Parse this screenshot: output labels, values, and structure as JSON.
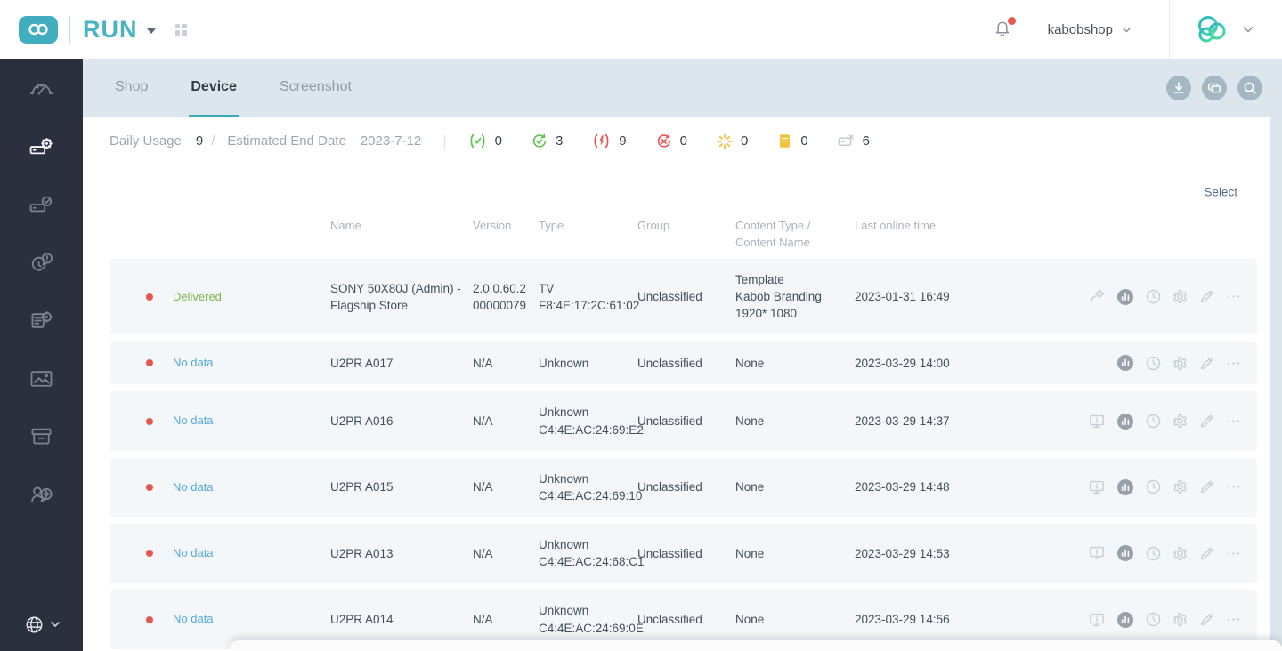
{
  "app": {
    "name": "RUN",
    "account": "kabobshop"
  },
  "colors": {
    "brand_teal": "#41aebf",
    "active_tab_underline": "#3aabbd",
    "status_green": "#77b64a",
    "status_blue": "#55a9da",
    "status_red_dot": "#e4574e",
    "counter_green": "#5fc34d",
    "counter_red": "#ef5350",
    "counter_yellow": "#f0c23e",
    "counter_gray": "#c3cad1",
    "sidebar_bg": "#2b303f"
  },
  "sidebar": {
    "items": [
      {
        "name": "dashboard",
        "icon": "gauge-icon",
        "active": false
      },
      {
        "name": "devices",
        "icon": "device-gear-icon",
        "active": true
      },
      {
        "name": "device-status",
        "icon": "device-check-icon",
        "active": false
      },
      {
        "name": "alerts",
        "icon": "clock-alert-icon",
        "active": false
      },
      {
        "name": "logs",
        "icon": "document-gear-icon",
        "active": false
      },
      {
        "name": "media",
        "icon": "image-icon",
        "active": false
      },
      {
        "name": "archive",
        "icon": "archive-icon",
        "active": false
      },
      {
        "name": "user-settings",
        "icon": "user-gear-icon",
        "active": false
      }
    ],
    "language_icon": "globe-icon"
  },
  "tabs": [
    {
      "label": "Shop",
      "active": false
    },
    {
      "label": "Device",
      "active": true
    },
    {
      "label": "Screenshot",
      "active": false
    }
  ],
  "toolbar_buttons": [
    {
      "icon": "download-icon"
    },
    {
      "icon": "cards-icon"
    },
    {
      "icon": "search-icon"
    }
  ],
  "stats": {
    "daily_usage_label": "Daily Usage",
    "daily_usage_value": "9",
    "slash": "/",
    "end_date_label": "Estimated End Date",
    "end_date_value": "2023-7-12",
    "pipe": "|",
    "counters": [
      {
        "icon": "code-check-icon",
        "color": "#5fc34d",
        "value": "0"
      },
      {
        "icon": "sync-check-icon",
        "color": "#5fc34d",
        "value": "3"
      },
      {
        "icon": "code-bolt-icon",
        "color": "#ef5350",
        "value": "9"
      },
      {
        "icon": "sync-x-icon",
        "color": "#ef5350",
        "value": "0"
      },
      {
        "icon": "spinner-icon",
        "color": "#f0c23e",
        "value": "0"
      },
      {
        "icon": "document-icon",
        "color": "#f0c23e",
        "value": "0"
      },
      {
        "icon": "device-x-icon",
        "color": "#c3cad1",
        "value": "6"
      }
    ]
  },
  "select_label": "Select",
  "table": {
    "columns": [
      "Name",
      "Version",
      "Type",
      "Group",
      "Content Type / Content Name",
      "Last online time"
    ],
    "rows": [
      {
        "status": "Delivered",
        "status_type": "delivered",
        "name": "SONY 50X80J (Admin) - Flagship Store",
        "version": "2.0.0.60.200000079",
        "type": "TV",
        "type_sub": "F8:4E:17:2C:61:02",
        "group": "Unclassified",
        "content_type": "Template",
        "content_name": "Kabob Branding 1920* 1080",
        "last_online": "2023-01-31 16:49",
        "actions": [
          "connect-gear-icon",
          "stats-icon",
          "clock-icon",
          "gear-icon",
          "pencil-icon",
          "more-icon"
        ]
      },
      {
        "status": "No data",
        "status_type": "nodata",
        "name": "U2PR A017",
        "version": "N/A",
        "type": "Unknown",
        "type_sub": "",
        "group": "Unclassified",
        "content_type": "None",
        "content_name": "",
        "last_online": "2023-03-29 14:00",
        "actions": [
          "stats-icon",
          "clock-icon",
          "gear-icon",
          "pencil-icon",
          "more-icon"
        ]
      },
      {
        "status": "No data",
        "status_type": "nodata",
        "name": "U2PR A016",
        "version": "N/A",
        "type": "Unknown",
        "type_sub": "C4:4E:AC:24:69:E2",
        "group": "Unclassified",
        "content_type": "None",
        "content_name": "",
        "last_online": "2023-03-29 14:37",
        "actions": [
          "monitor-icon",
          "stats-icon",
          "clock-icon",
          "gear-icon",
          "pencil-icon",
          "more-icon"
        ]
      },
      {
        "status": "No data",
        "status_type": "nodata",
        "name": "U2PR A015",
        "version": "N/A",
        "type": "Unknown",
        "type_sub": "C4:4E:AC:24:69:10",
        "group": "Unclassified",
        "content_type": "None",
        "content_name": "",
        "last_online": "2023-03-29 14:48",
        "actions": [
          "monitor-icon",
          "stats-icon",
          "clock-icon",
          "gear-icon",
          "pencil-icon",
          "more-icon"
        ]
      },
      {
        "status": "No data",
        "status_type": "nodata",
        "name": "U2PR A013",
        "version": "N/A",
        "type": "Unknown",
        "type_sub": "C4:4E:AC:24:68:C1",
        "group": "Unclassified",
        "content_type": "None",
        "content_name": "",
        "last_online": "2023-03-29 14:53",
        "actions": [
          "monitor-icon",
          "stats-icon",
          "clock-icon",
          "gear-icon",
          "pencil-icon",
          "more-icon"
        ]
      },
      {
        "status": "No data",
        "status_type": "nodata",
        "name": "U2PR A014",
        "version": "N/A",
        "type": "Unknown",
        "type_sub": "C4:4E:AC:24:69:0E",
        "group": "Unclassified",
        "content_type": "None",
        "content_name": "",
        "last_online": "2023-03-29 14:56",
        "actions": [
          "monitor-icon",
          "stats-icon",
          "clock-icon",
          "gear-icon",
          "pencil-icon",
          "more-icon"
        ]
      }
    ]
  }
}
